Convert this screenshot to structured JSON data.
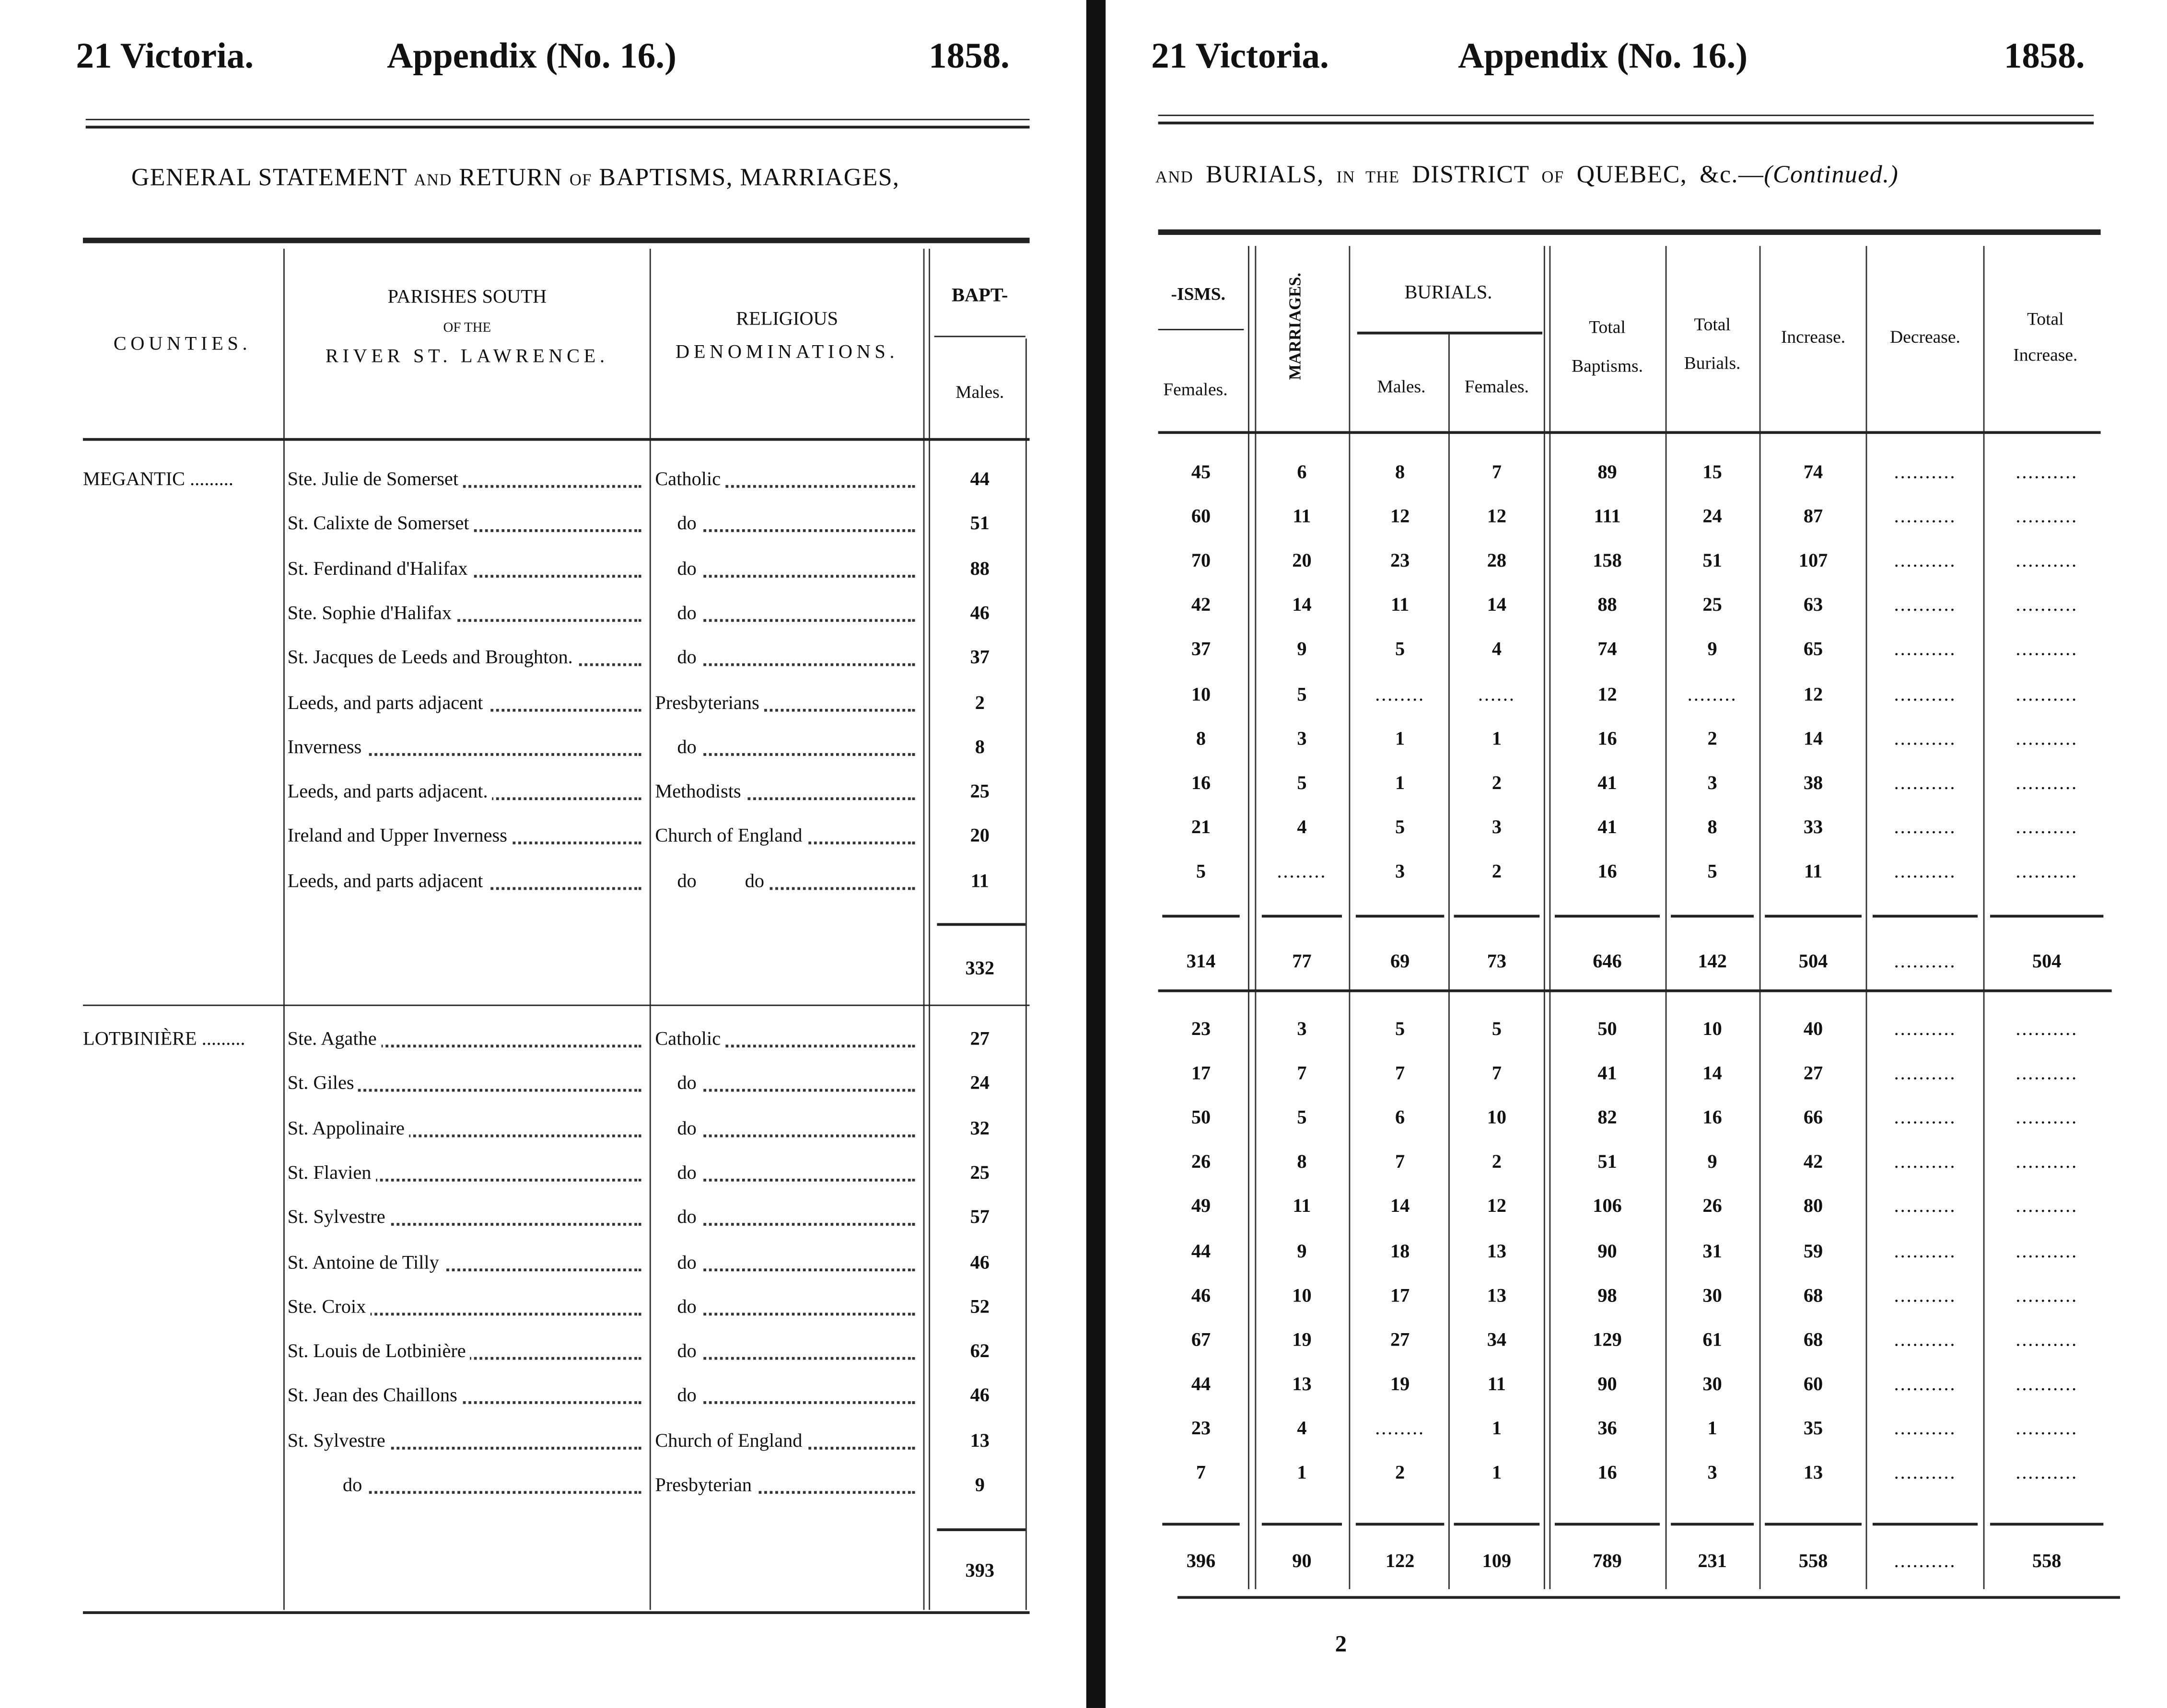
{
  "left_page": {
    "header": {
      "session": "21 Victoria.",
      "appendix": "Appendix (No. 16.)",
      "year": "1858."
    },
    "title": {
      "part1": "GENERAL STATEMENT",
      "and": "AND",
      "part2": "RETURN",
      "of": "OF",
      "part3": "BAPTISMS, MARRIAGES,"
    },
    "columns": {
      "counties": "COUNTIES.",
      "parishes_1": "PARISHES SOUTH",
      "parishes_2": "OF THE",
      "parishes_3": "RIVER ST. LAWRENCE.",
      "denom_1": "RELIGIOUS",
      "denom_2": "DENOMINATIONS.",
      "baptisms": "BAPT-",
      "males": "Males."
    },
    "groups": [
      {
        "county": "MEGANTIC",
        "total_males": "332",
        "rows": [
          {
            "parish": "Ste. Julie de Somerset",
            "denomination": "Catholic",
            "males": "44"
          },
          {
            "parish": "St. Calixte de Somerset",
            "denomination": "do",
            "males": "51"
          },
          {
            "parish": "St. Ferdinand d'Halifax",
            "denomination": "do",
            "males": "88"
          },
          {
            "parish": "Ste. Sophie d'Halifax",
            "denomination": "do",
            "males": "46"
          },
          {
            "parish": "St. Jacques de Leeds and Broughton.",
            "denomination": "do",
            "males": "37"
          },
          {
            "parish": "Leeds, and parts adjacent",
            "denomination": "Presbyterians",
            "males": "2"
          },
          {
            "parish": "Inverness",
            "denomination": "do",
            "males": "8"
          },
          {
            "parish": "Leeds, and parts adjacent.",
            "denomination": "Methodists",
            "males": "25"
          },
          {
            "parish": "Ireland and Upper Inverness",
            "denomination": "Church of England",
            "males": "20"
          },
          {
            "parish": "Leeds, and parts adjacent",
            "denomination": "do          do",
            "males": "11"
          }
        ]
      },
      {
        "county": "LOTBINIÈRE",
        "total_males": "393",
        "rows": [
          {
            "parish": "Ste. Agathe",
            "denomination": "Catholic",
            "males": "27"
          },
          {
            "parish": "St. Giles",
            "denomination": "do",
            "males": "24"
          },
          {
            "parish": "St. Appolinaire",
            "denomination": "do",
            "males": "32"
          },
          {
            "parish": "St. Flavien",
            "denomination": "do",
            "males": "25"
          },
          {
            "parish": "St. Sylvestre",
            "denomination": "do",
            "males": "57"
          },
          {
            "parish": "St. Antoine de Tilly",
            "denomination": "do",
            "males": "46"
          },
          {
            "parish": "Ste. Croix",
            "denomination": "do",
            "males": "52"
          },
          {
            "parish": "St. Louis de Lotbinière",
            "denomination": "do",
            "males": "62"
          },
          {
            "parish": "St. Jean des Chaillons",
            "denomination": "do",
            "males": "46"
          },
          {
            "parish": "St. Sylvestre",
            "denomination": "Church of England",
            "males": "13"
          },
          {
            "parish": "do",
            "denomination": "Presbyterian",
            "males": "9"
          }
        ]
      }
    ]
  },
  "right_page": {
    "header": {
      "session": "21 Victoria.",
      "appendix": "Appendix (No. 16.)",
      "year": "1858."
    },
    "title": {
      "and": "AND",
      "part1": "BURIALS,",
      "in_the": "IN THE",
      "part2": "DISTRICT",
      "of": "OF",
      "part3": "QUEBEC,  &c.—",
      "continued": "(Continued.)"
    },
    "columns": {
      "baptisms_cont": "-ISMS.",
      "females": "Females.",
      "marriages": "MARRIAGES.",
      "burials": "BURIALS.",
      "burials_males": "Males.",
      "burials_females": "Females.",
      "total_baptisms_1": "Total",
      "total_baptisms_2": "Baptisms.",
      "total_burials_1": "Total",
      "total_burials_2": "Burials.",
      "increase": "Increase.",
      "decrease": "Decrease.",
      "total_increase_1": "Total",
      "total_increase_2": "Increase."
    },
    "groups": [
      {
        "rows": [
          [
            "45",
            "6",
            "8",
            "7",
            "89",
            "15",
            "74",
            "..........",
            ".........."
          ],
          [
            "60",
            "11",
            "12",
            "12",
            "111",
            "24",
            "87",
            "..........",
            ".........."
          ],
          [
            "70",
            "20",
            "23",
            "28",
            "158",
            "51",
            "107",
            "..........",
            ".........."
          ],
          [
            "42",
            "14",
            "11",
            "14",
            "88",
            "25",
            "63",
            "..........",
            ".........."
          ],
          [
            "37",
            "9",
            "5",
            "4",
            "74",
            "9",
            "65",
            "..........",
            ".........."
          ],
          [
            "10",
            "5",
            "........",
            "......",
            "12",
            "........",
            "12",
            "..........",
            ".........."
          ],
          [
            "8",
            "3",
            "1",
            "1",
            "16",
            "2",
            "14",
            "..........",
            ".........."
          ],
          [
            "16",
            "5",
            "1",
            "2",
            "41",
            "3",
            "38",
            "..........",
            ".........."
          ],
          [
            "21",
            "4",
            "5",
            "3",
            "41",
            "8",
            "33",
            "..........",
            ".........."
          ],
          [
            "5",
            "........",
            "3",
            "2",
            "16",
            "5",
            "11",
            "..........",
            ".........."
          ]
        ],
        "totals": [
          "314",
          "77",
          "69",
          "73",
          "646",
          "142",
          "504",
          "..........",
          "504"
        ]
      },
      {
        "rows": [
          [
            "23",
            "3",
            "5",
            "5",
            "50",
            "10",
            "40",
            "..........",
            ".........."
          ],
          [
            "17",
            "7",
            "7",
            "7",
            "41",
            "14",
            "27",
            "..........",
            ".........."
          ],
          [
            "50",
            "5",
            "6",
            "10",
            "82",
            "16",
            "66",
            "..........",
            ".........."
          ],
          [
            "26",
            "8",
            "7",
            "2",
            "51",
            "9",
            "42",
            "..........",
            ".........."
          ],
          [
            "49",
            "11",
            "14",
            "12",
            "106",
            "26",
            "80",
            "..........",
            ".........."
          ],
          [
            "44",
            "9",
            "18",
            "13",
            "90",
            "31",
            "59",
            "..........",
            ".........."
          ],
          [
            "46",
            "10",
            "17",
            "13",
            "98",
            "30",
            "68",
            "..........",
            ".........."
          ],
          [
            "67",
            "19",
            "27",
            "34",
            "129",
            "61",
            "68",
            "..........",
            ".........."
          ],
          [
            "44",
            "13",
            "19",
            "11",
            "90",
            "30",
            "60",
            "..........",
            ".........."
          ],
          [
            "23",
            "4",
            "........",
            "1",
            "36",
            "1",
            "35",
            "..........",
            ".........."
          ],
          [
            "7",
            "1",
            "2",
            "1",
            "16",
            "3",
            "13",
            "..........",
            ".........."
          ]
        ],
        "totals": [
          "396",
          "90",
          "122",
          "109",
          "789",
          "231",
          "558",
          "..........",
          "558"
        ]
      }
    ],
    "page_number": "2"
  }
}
